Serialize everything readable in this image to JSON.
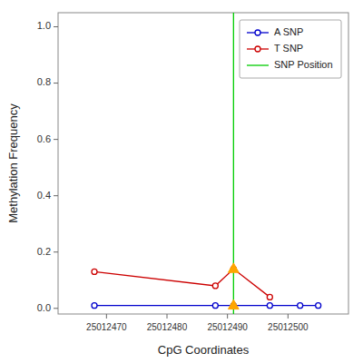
{
  "chart_data": {
    "type": "line",
    "xlabel": "CpG Coordinates",
    "ylabel": "Methylation Frequency",
    "series": [
      {
        "name": "A SNP",
        "type": "line",
        "color": "#0000CC",
        "marker": "circle",
        "x": [
          25012468,
          25012488,
          25012491,
          25012497,
          25012502,
          25012505
        ],
        "values": [
          0.01,
          0.01,
          0.01,
          0.01,
          0.01,
          0.01
        ]
      },
      {
        "name": "T SNP",
        "type": "line",
        "color": "#CC0000",
        "marker": "circle",
        "x": [
          25012468,
          25012488,
          25012491,
          25012497
        ],
        "values": [
          0.13,
          0.08,
          0.14,
          0.04
        ]
      },
      {
        "name": "SNP Position",
        "type": "vline",
        "color": "#00CC00",
        "x": [
          25012491
        ]
      },
      {
        "type": "scatter",
        "color": "#FFA500",
        "marker": "triangle",
        "x": [
          25012491,
          25012491
        ],
        "values": [
          0.01,
          0.14
        ]
      }
    ],
    "xlim": [
      25012462,
      25012510
    ],
    "ylim": [
      -0.02,
      1.05
    ],
    "xticks": [
      25012470,
      25012480,
      25012490,
      25012500
    ],
    "yticks": [
      {
        "value": 0.0,
        "label": "0.0"
      },
      0.2,
      0.4,
      0.6,
      0.8,
      {
        "value": 1.0,
        "label": "1.0"
      }
    ],
    "grid": false,
    "legend": "upper right"
  }
}
